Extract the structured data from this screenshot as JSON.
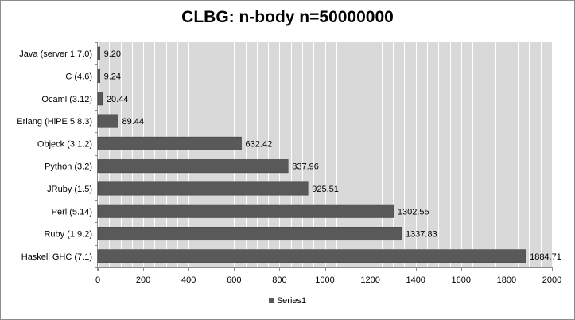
{
  "chart_data": {
    "type": "bar",
    "orientation": "horizontal",
    "title": "CLBG: n-body n=50000000",
    "categories": [
      "Java (server 1.7.0)",
      "C (4.6)",
      "Ocaml (3.12)",
      "Erlang (HiPE 5.8.3)",
      "Objeck (3.1.2)",
      "Python (3.2)",
      "JRuby (1.5)",
      "Perl (5.14)",
      "Ruby (1.9.2)",
      "Haskell GHC (7.1)"
    ],
    "series": [
      {
        "name": "Series1",
        "values": [
          9.2,
          9.24,
          20.44,
          89.44,
          632.42,
          837.96,
          925.51,
          1302.55,
          1337.83,
          1884.71
        ],
        "labels": [
          "9.20",
          "9.24",
          "20.44",
          "89.44",
          "632.42",
          "837.96",
          "925.51",
          "1302.55",
          "1337.83",
          "1884.71"
        ]
      }
    ],
    "xticks": [
      0,
      200,
      400,
      600,
      800,
      1000,
      1200,
      1400,
      1600,
      1800,
      2000
    ],
    "xlim": [
      0,
      2000
    ],
    "grid": true,
    "legend": "bottom",
    "colors": {
      "bar": "#595959",
      "bar_edge": "#404040",
      "plot_bg": "#d9d9d9",
      "grid": "#ffffff"
    }
  }
}
